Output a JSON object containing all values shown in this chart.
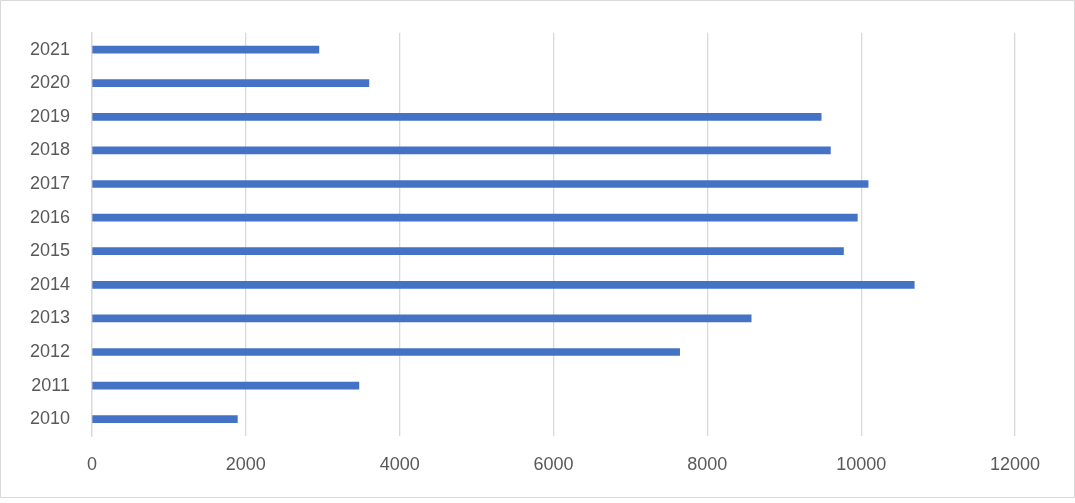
{
  "chart_data": {
    "type": "bar",
    "orientation": "horizontal",
    "categories": [
      "2021",
      "2020",
      "2019",
      "2018",
      "2017",
      "2016",
      "2015",
      "2014",
      "2013",
      "2012",
      "2011",
      "2010"
    ],
    "values": [
      2950,
      3600,
      9480,
      9600,
      10090,
      9950,
      9770,
      10690,
      8570,
      7640,
      3470,
      1890
    ],
    "color": "#4472c4",
    "xlim": [
      0,
      12000
    ],
    "xticks": [
      0,
      2000,
      4000,
      6000,
      8000,
      10000,
      12000
    ],
    "grid": "x"
  }
}
